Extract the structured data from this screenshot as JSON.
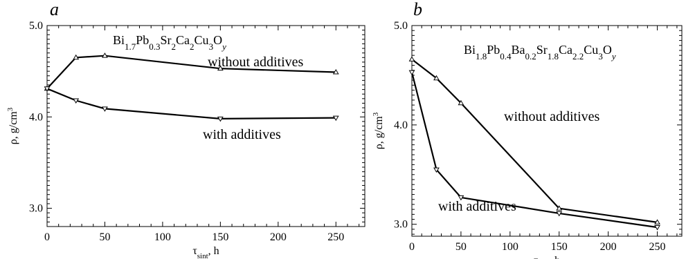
{
  "chart_data": [
    {
      "type": "line",
      "panel_letter": "a",
      "formula": {
        "parts": [
          {
            "t": "Bi"
          },
          {
            "t": "1.7",
            "sub": true
          },
          {
            "t": "Pb"
          },
          {
            "t": "0.3",
            "sub": true
          },
          {
            "t": "Sr"
          },
          {
            "t": "2",
            "sub": true
          },
          {
            "t": "Ca"
          },
          {
            "t": "2",
            "sub": true
          },
          {
            "t": "Cu"
          },
          {
            "t": "3",
            "sub": true
          },
          {
            "t": "O"
          },
          {
            "t": "y",
            "sub": true,
            "italic": true
          }
        ]
      },
      "xlabel": {
        "main": "τ",
        "sub": "sint",
        "rest": ", h"
      },
      "ylabel": {
        "main": "ρ, g/cm",
        "sup": "3"
      },
      "xlim": [
        0,
        275
      ],
      "ylim": [
        2.8,
        5.0
      ],
      "x_ticks": [
        0,
        50,
        100,
        150,
        200,
        250
      ],
      "x_tick_labels": [
        "0",
        "50",
        "100",
        "150",
        "200",
        "250"
      ],
      "y_ticks": [
        3.0,
        4.0,
        5.0
      ],
      "y_tick_labels": [
        "3.0",
        "4.0",
        "5.0"
      ],
      "grid": false,
      "series": [
        {
          "label": "without additives",
          "marker": "triangle-up",
          "x": [
            0,
            25,
            50,
            150,
            250
          ],
          "y": [
            4.31,
            4.65,
            4.67,
            4.53,
            4.49
          ]
        },
        {
          "label": "with additives",
          "marker": "triangle-down",
          "x": [
            0,
            25,
            50,
            150,
            250
          ],
          "y": [
            4.31,
            4.18,
            4.09,
            3.98,
            3.99
          ]
        }
      ]
    },
    {
      "type": "line",
      "panel_letter": "b",
      "formula": {
        "parts": [
          {
            "t": "Bi"
          },
          {
            "t": "1.8",
            "sub": true
          },
          {
            "t": "Pb"
          },
          {
            "t": "0.4",
            "sub": true
          },
          {
            "t": "Ba"
          },
          {
            "t": "0.2",
            "sub": true
          },
          {
            "t": "Sr"
          },
          {
            "t": "1.8",
            "sub": true
          },
          {
            "t": "Ca"
          },
          {
            "t": "2.2",
            "sub": true
          },
          {
            "t": "Cu"
          },
          {
            "t": "3",
            "sub": true
          },
          {
            "t": "O"
          },
          {
            "t": "y",
            "sub": true,
            "italic": true
          }
        ]
      },
      "xlabel": {
        "main": "τ",
        "sub": "sint",
        "rest": ", h"
      },
      "ylabel": {
        "main": "ρ, g/cm",
        "sup": "3"
      },
      "xlim": [
        0,
        275
      ],
      "ylim": [
        2.88,
        5.0
      ],
      "x_ticks": [
        0,
        50,
        100,
        150,
        200,
        250
      ],
      "x_tick_labels": [
        "0",
        "50",
        "100",
        "150",
        "200",
        "250"
      ],
      "y_ticks": [
        3.0,
        4.0,
        5.0
      ],
      "y_tick_labels": [
        "3.0",
        "4.0",
        "5.0"
      ],
      "grid": false,
      "series": [
        {
          "label": "without additives",
          "marker": "triangle-up",
          "x": [
            0,
            25,
            50,
            150,
            250
          ],
          "y": [
            4.66,
            4.47,
            4.22,
            3.16,
            3.02
          ]
        },
        {
          "label": "with additives",
          "marker": "triangle-down",
          "x": [
            0,
            25,
            50,
            150,
            250
          ],
          "y": [
            4.53,
            3.55,
            3.27,
            3.11,
            2.97
          ]
        }
      ]
    }
  ]
}
